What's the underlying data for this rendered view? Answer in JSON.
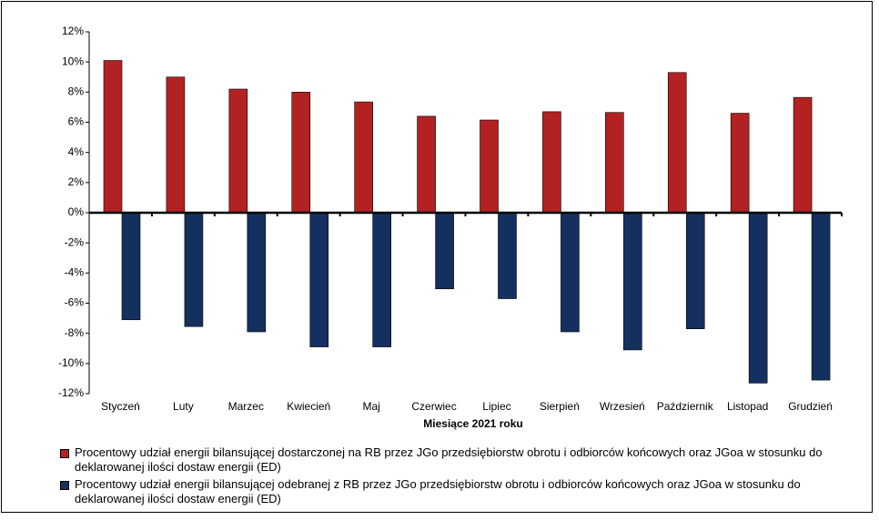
{
  "chart_data": {
    "type": "bar",
    "categories": [
      "Styczeń",
      "Luty",
      "Marzec",
      "Kwiecień",
      "Maj",
      "Czerwiec",
      "Lipiec",
      "Sierpień",
      "Wrzesień",
      "Październik",
      "Listopad",
      "Grudzień"
    ],
    "series": [
      {
        "name": "Procentowy udział energii bilansującej dostarczonej na RB przez JGo przedsiębiorstw obrotu i odbiorców końcowych oraz JGoa w stosunku do deklarowanej ilości dostaw energii (ED)",
        "color": "#b22222",
        "values": [
          10.1,
          9.0,
          8.2,
          8.0,
          7.35,
          6.4,
          6.15,
          6.7,
          6.65,
          9.3,
          6.6,
          7.65
        ]
      },
      {
        "name": "Procentowy udział energii bilansującej odebranej z RB przez JGo przedsiębiorstw obrotu i odbiorców końcowych oraz JGoa w stosunku do deklarowanej ilości dostaw energii (ED)",
        "color": "#14305e",
        "values": [
          -7.1,
          -7.55,
          -7.9,
          -8.9,
          -8.9,
          -5.05,
          -5.7,
          -7.9,
          -9.1,
          -7.7,
          -11.3,
          -11.1
        ]
      }
    ],
    "x_label": "Miesiące 2021  roku",
    "ylim": [
      -12,
      12
    ],
    "yticks": [
      {
        "value": -12,
        "label": "-12%"
      },
      {
        "value": -10,
        "label": "-10%"
      },
      {
        "value": -8,
        "label": "-8%"
      },
      {
        "value": -6,
        "label": "-6%"
      },
      {
        "value": -4,
        "label": "-4%"
      },
      {
        "value": -2,
        "label": "-2%"
      },
      {
        "value": 0,
        "label": "0%"
      },
      {
        "value": 2,
        "label": "2%"
      },
      {
        "value": 4,
        "label": "4%"
      },
      {
        "value": 6,
        "label": "6%"
      },
      {
        "value": 8,
        "label": "8%"
      },
      {
        "value": 10,
        "label": "10%"
      },
      {
        "value": 12,
        "label": "12%"
      }
    ],
    "legend": "bottom"
  }
}
